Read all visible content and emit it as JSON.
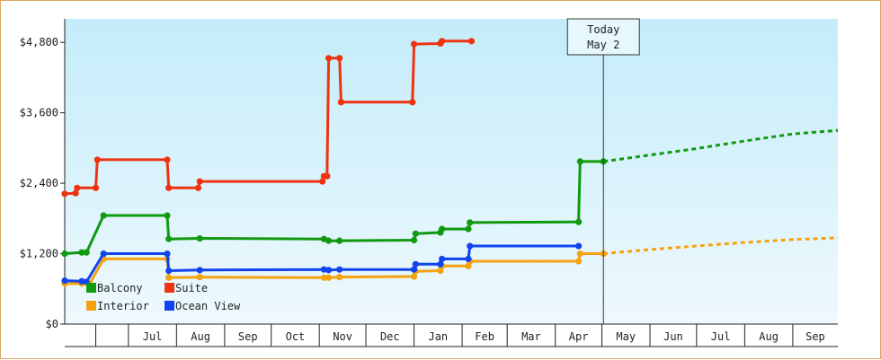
{
  "chart_data": {
    "type": "line",
    "title": "",
    "xlabel": "",
    "ylabel": "",
    "ylim": [
      0,
      5200
    ],
    "yticks": [
      {
        "value": 0,
        "label": "$0"
      },
      {
        "value": 1200,
        "label": "$1,200"
      },
      {
        "value": 2400,
        "label": "$2,400"
      },
      {
        "value": 3600,
        "label": "$3,600"
      },
      {
        "value": 4800,
        "label": "$4,800"
      }
    ],
    "x_range": [
      "2019-05-21",
      "2020-09-30"
    ],
    "month_ticks": [
      {
        "date": "2019-06-10",
        "label": ""
      },
      {
        "date": "2019-07-01",
        "label": "Jul"
      },
      {
        "date": "2019-08-01",
        "label": "Aug"
      },
      {
        "date": "2019-09-01",
        "label": "Sep"
      },
      {
        "date": "2019-10-01",
        "label": "Oct"
      },
      {
        "date": "2019-11-01",
        "label": "Nov"
      },
      {
        "date": "2019-12-01",
        "label": "Dec"
      },
      {
        "date": "2020-01-01",
        "label": "Jan"
      },
      {
        "date": "2020-02-01",
        "label": "Feb"
      },
      {
        "date": "2020-03-01",
        "label": "Mar"
      },
      {
        "date": "2020-04-01",
        "label": "Apr"
      },
      {
        "date": "2020-05-01",
        "label": "May"
      },
      {
        "date": "2020-06-01",
        "label": "Jun"
      },
      {
        "date": "2020-07-01",
        "label": "Jul"
      },
      {
        "date": "2020-08-01",
        "label": "Aug"
      },
      {
        "date": "2020-09-01",
        "label": "Sep"
      }
    ],
    "grid": false,
    "legend_position": "bottom-left",
    "today": {
      "date": "2020-05-02",
      "label_line1": "Today",
      "label_line2": "May 2"
    },
    "series": [
      {
        "name": "Balcony",
        "color": "#119911",
        "points": [
          [
            "2019-05-21",
            1200
          ],
          [
            "2019-06-01",
            1220
          ],
          [
            "2019-06-04",
            1220
          ],
          [
            "2019-06-15",
            1850
          ],
          [
            "2019-07-26",
            1850
          ],
          [
            "2019-07-27",
            1450
          ],
          [
            "2019-08-16",
            1460
          ],
          [
            "2019-11-04",
            1450
          ],
          [
            "2019-11-07",
            1420
          ],
          [
            "2019-11-14",
            1420
          ],
          [
            "2020-01-01",
            1430
          ],
          [
            "2020-01-02",
            1540
          ],
          [
            "2020-01-18",
            1560
          ],
          [
            "2020-01-19",
            1620
          ],
          [
            "2020-02-05",
            1620
          ],
          [
            "2020-02-06",
            1730
          ],
          [
            "2020-04-16",
            1740
          ],
          [
            "2020-04-17",
            2770
          ],
          [
            "2020-05-02",
            2770
          ]
        ],
        "forecast": [
          [
            "2020-05-02",
            2770
          ],
          [
            "2020-06-01",
            2880
          ],
          [
            "2020-07-01",
            2990
          ],
          [
            "2020-08-01",
            3120
          ],
          [
            "2020-09-01",
            3240
          ],
          [
            "2020-09-30",
            3300
          ]
        ]
      },
      {
        "name": "Suite",
        "color": "#ee3311",
        "points": [
          [
            "2019-05-21",
            2220
          ],
          [
            "2019-05-28",
            2230
          ],
          [
            "2019-05-29",
            2320
          ],
          [
            "2019-06-10",
            2320
          ],
          [
            "2019-06-11",
            2800
          ],
          [
            "2019-07-26",
            2800
          ],
          [
            "2019-07-27",
            2320
          ],
          [
            "2019-08-15",
            2320
          ],
          [
            "2019-08-16",
            2430
          ],
          [
            "2019-11-03",
            2430
          ],
          [
            "2019-11-04",
            2520
          ],
          [
            "2019-11-06",
            2520
          ],
          [
            "2019-11-07",
            4530
          ],
          [
            "2019-11-14",
            4530
          ],
          [
            "2019-11-15",
            3780
          ],
          [
            "2019-12-31",
            3780
          ],
          [
            "2020-01-01",
            4770
          ],
          [
            "2020-01-18",
            4780
          ],
          [
            "2020-01-19",
            4820
          ],
          [
            "2020-02-07",
            4820
          ]
        ]
      },
      {
        "name": "Interior",
        "color": "#f5a20f",
        "points": [
          [
            "2019-05-21",
            690
          ],
          [
            "2019-06-01",
            690
          ],
          [
            "2019-06-06",
            680
          ],
          [
            "2019-06-15",
            1110
          ],
          [
            "2019-07-26",
            1110
          ],
          [
            "2019-07-27",
            790
          ],
          [
            "2019-08-16",
            800
          ],
          [
            "2019-11-04",
            790
          ],
          [
            "2019-11-07",
            790
          ],
          [
            "2019-11-14",
            800
          ],
          [
            "2020-01-01",
            810
          ],
          [
            "2020-01-02",
            900
          ],
          [
            "2020-01-18",
            910
          ],
          [
            "2020-01-19",
            990
          ],
          [
            "2020-02-05",
            990
          ],
          [
            "2020-02-06",
            1070
          ],
          [
            "2020-04-16",
            1070
          ],
          [
            "2020-04-17",
            1200
          ],
          [
            "2020-05-02",
            1200
          ]
        ],
        "forecast": [
          [
            "2020-05-02",
            1200
          ],
          [
            "2020-06-01",
            1270
          ],
          [
            "2020-07-01",
            1330
          ],
          [
            "2020-08-01",
            1390
          ],
          [
            "2020-09-01",
            1440
          ],
          [
            "2020-09-30",
            1470
          ]
        ]
      },
      {
        "name": "Ocean View",
        "color": "#1144ee",
        "points": [
          [
            "2019-05-21",
            740
          ],
          [
            "2019-06-01",
            730
          ],
          [
            "2019-06-04",
            720
          ],
          [
            "2019-06-15",
            1200
          ],
          [
            "2019-07-26",
            1200
          ],
          [
            "2019-07-27",
            910
          ],
          [
            "2019-08-16",
            920
          ],
          [
            "2019-11-04",
            930
          ],
          [
            "2019-11-07",
            920
          ],
          [
            "2019-11-14",
            930
          ],
          [
            "2020-01-01",
            930
          ],
          [
            "2020-01-02",
            1020
          ],
          [
            "2020-01-18",
            1020
          ],
          [
            "2020-01-19",
            1110
          ],
          [
            "2020-02-05",
            1110
          ],
          [
            "2020-02-06",
            1330
          ],
          [
            "2020-04-16",
            1330
          ]
        ]
      }
    ]
  }
}
